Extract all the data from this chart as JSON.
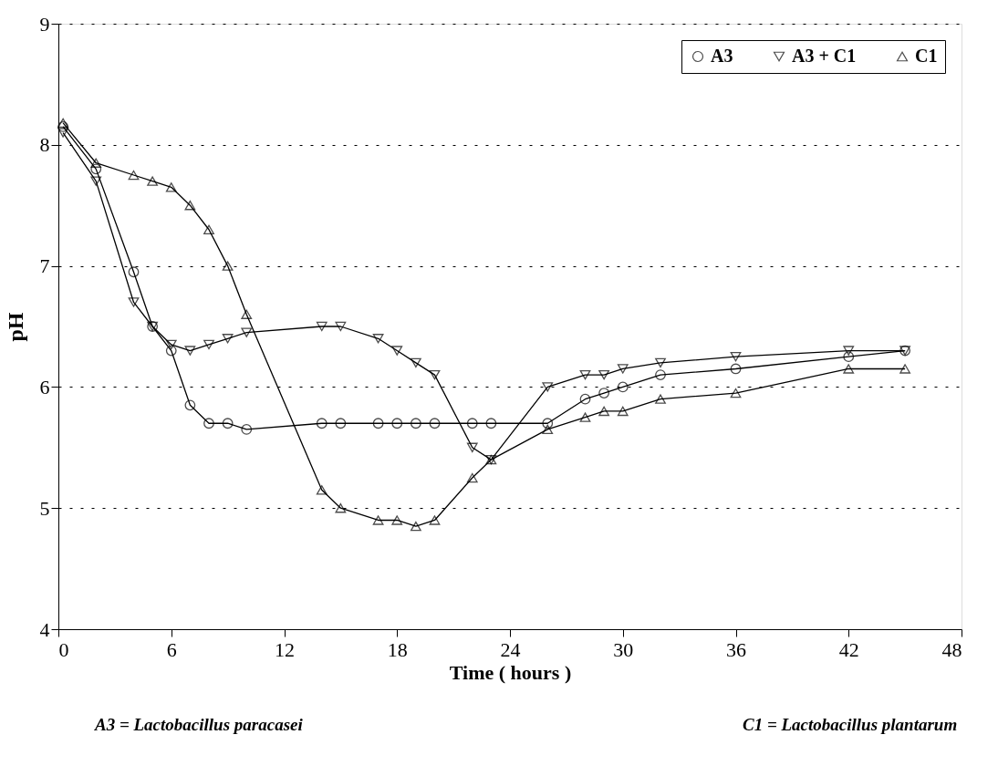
{
  "chart_data": {
    "type": "line",
    "xlabel": "Time ( hours )",
    "ylabel": "pH",
    "x": [
      0.25,
      2,
      4,
      5,
      6,
      7,
      8,
      9,
      10,
      14,
      15,
      17,
      18,
      19,
      20,
      22,
      23,
      26,
      28,
      29,
      30,
      32,
      36,
      42,
      45
    ],
    "series": [
      {
        "name": "A3",
        "color": "#000000",
        "marker": "circle",
        "values": [
          8.15,
          7.8,
          6.95,
          6.5,
          6.3,
          5.85,
          5.7,
          5.7,
          5.65,
          5.7,
          5.7,
          5.7,
          5.7,
          5.7,
          5.7,
          5.7,
          5.7,
          5.7,
          5.9,
          5.95,
          6.0,
          6.1,
          6.15,
          6.25,
          6.3
        ]
      },
      {
        "name": "A3 + C1",
        "color": "#000000",
        "marker": "triangle-down",
        "values": [
          8.1,
          7.7,
          6.7,
          6.5,
          6.35,
          6.3,
          6.35,
          6.4,
          6.45,
          6.5,
          6.5,
          6.4,
          6.3,
          6.2,
          6.1,
          5.5,
          5.4,
          6.0,
          6.1,
          6.1,
          6.15,
          6.2,
          6.25,
          6.3,
          6.3
        ]
      },
      {
        "name": "C1",
        "color": "#000000",
        "marker": "triangle",
        "values": [
          8.18,
          7.85,
          7.75,
          7.7,
          7.65,
          7.5,
          7.3,
          7.0,
          6.6,
          5.15,
          5.0,
          4.9,
          4.9,
          4.85,
          4.9,
          5.25,
          5.4,
          5.65,
          5.75,
          5.8,
          5.8,
          5.9,
          5.95,
          6.15,
          6.15
        ]
      }
    ],
    "xlim": [
      0,
      48
    ],
    "xticks": [
      0,
      6,
      12,
      18,
      24,
      30,
      36,
      42,
      48
    ],
    "ylim": [
      4,
      9
    ],
    "yticks": [
      4,
      5,
      6,
      7,
      8,
      9
    ],
    "grid": "y",
    "legend": "top right",
    "line_style": "solid",
    "annotations": [
      "A3 =    Lactobacillus paracasei",
      "C1 =    Lactobacillus plantarum"
    ]
  }
}
